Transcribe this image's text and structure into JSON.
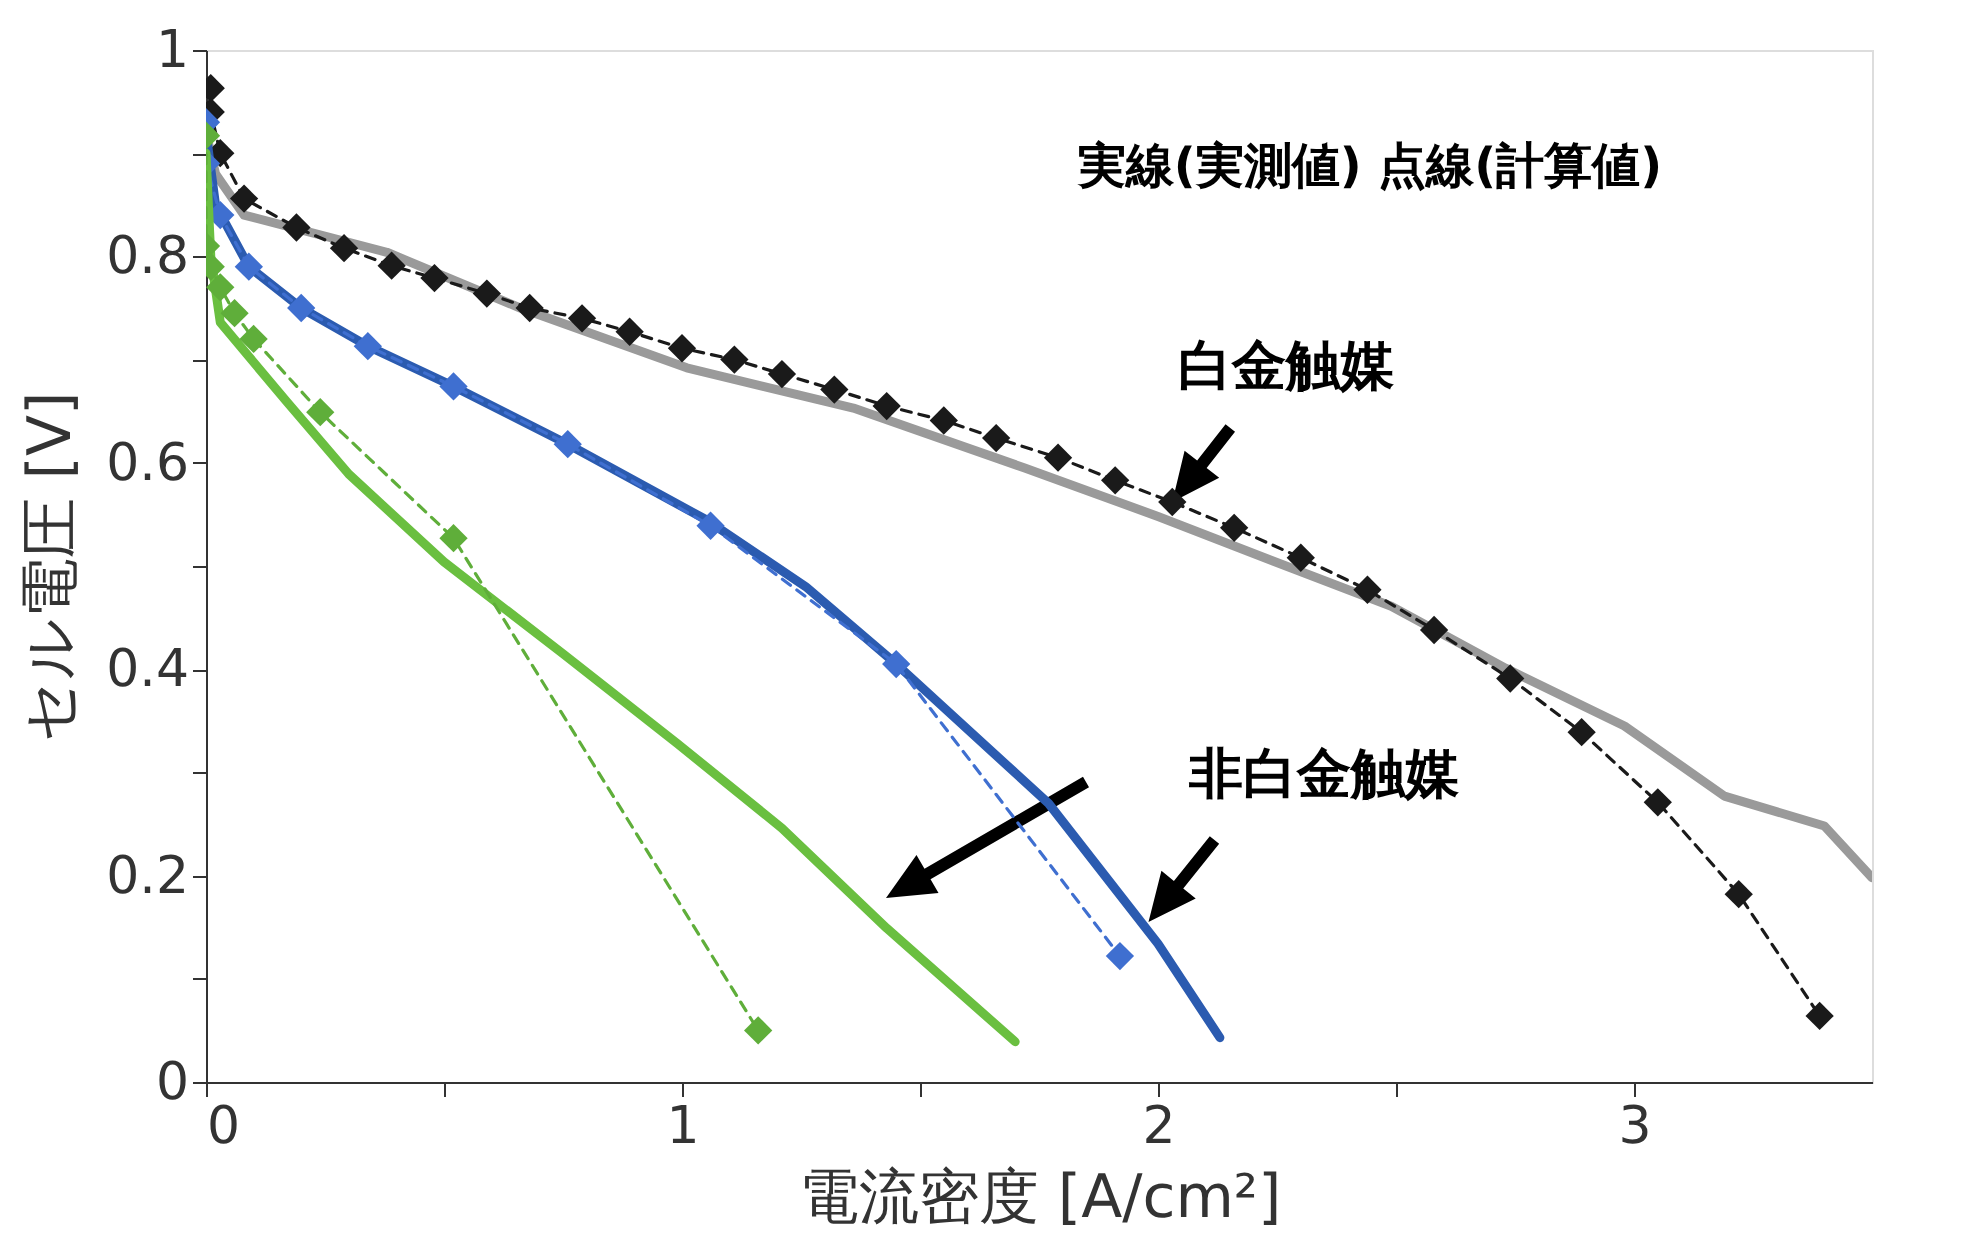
{
  "chart_data": {
    "type": "line",
    "xlabel": "電流密度 [A/cm²]",
    "ylabel": "セル電圧 [V]",
    "xlim": [
      0,
      3.5
    ],
    "ylim": [
      0,
      1
    ],
    "xticks": [
      0,
      {
        "value": 0.5,
        "label": null
      },
      1,
      {
        "value": 1.5,
        "label": null
      },
      2,
      {
        "value": 2.5,
        "label": null
      },
      3
    ],
    "yticks": [
      0,
      {
        "value": 0.1,
        "label": null
      },
      0.2,
      {
        "value": 0.3,
        "label": null
      },
      0.4,
      {
        "value": 0.5,
        "label": null
      },
      0.6,
      {
        "value": 0.7,
        "label": null
      },
      0.8,
      {
        "value": 0.9,
        "label": null
      },
      1
    ],
    "grid": false,
    "annotations": [
      "実線(実測値)  点線(計算値)",
      {
        "text": "白金触媒",
        "x": 2.03,
        "y": 0.562
      },
      {
        "text": "非白金触媒",
        "x": 1.98,
        "y": 0.155
      }
    ],
    "series": [
      {
        "color": "#9a9a9a",
        "marker": "none",
        "line_style": "solid",
        "x": [
          0,
          0.02,
          0.08,
          0.38,
          0.66,
          1.01,
          1.36,
          1.72,
          2.0,
          2.28,
          2.49,
          2.73,
          2.98,
          3.19,
          3.4,
          3.5
        ],
        "values": [
          0.92,
          0.88,
          0.84,
          0.804,
          0.75,
          0.692,
          0.653,
          0.595,
          0.548,
          0.498,
          0.461,
          0.401,
          0.345,
          0.277,
          0.248,
          0.198
        ]
      },
      {
        "color": "#1a1a1a",
        "marker": "diamond",
        "line_style": "dashed",
        "x": [
          0.01,
          0.01,
          0.03,
          0.08,
          0.19,
          0.29,
          0.39,
          0.48,
          0.59,
          0.68,
          0.79,
          0.89,
          1.0,
          1.11,
          1.21,
          1.32,
          1.43,
          1.55,
          1.66,
          1.79,
          1.91,
          2.03,
          2.16,
          2.3,
          2.44,
          2.58,
          2.74,
          2.89,
          3.05,
          3.22,
          3.39
        ],
        "values": [
          0.963,
          0.94,
          0.9,
          0.856,
          0.828,
          0.808,
          0.791,
          0.779,
          0.764,
          0.75,
          0.74,
          0.727,
          0.711,
          0.7,
          0.686,
          0.671,
          0.655,
          0.641,
          0.624,
          0.605,
          0.583,
          0.562,
          0.537,
          0.508,
          0.477,
          0.438,
          0.391,
          0.339,
          0.271,
          0.182,
          0.064
        ]
      },
      {
        "color": "#2b5bb0",
        "marker": "none",
        "line_style": "solid",
        "x": [
          0,
          0.02,
          0.09,
          0.2,
          0.34,
          0.52,
          0.76,
          1.05,
          1.26,
          1.45,
          1.77,
          2.0,
          2.13
        ],
        "values": [
          0.92,
          0.85,
          0.79,
          0.75,
          0.713,
          0.674,
          0.618,
          0.545,
          0.48,
          0.405,
          0.27,
          0.134,
          0.043
        ]
      },
      {
        "color": "#3f6fd0",
        "marker": "diamond",
        "line_style": "dashed",
        "x": [
          0,
          0,
          0.03,
          0.09,
          0.2,
          0.34,
          0.52,
          0.76,
          1.06,
          1.45,
          1.92
        ],
        "values": [
          0.93,
          0.89,
          0.84,
          0.79,
          0.75,
          0.713,
          0.674,
          0.618,
          0.539,
          0.405,
          0.122
        ]
      },
      {
        "color": "#6abf40",
        "marker": "none",
        "line_style": "solid",
        "x": [
          0,
          0.01,
          0.03,
          0.17,
          0.3,
          0.5,
          0.75,
          0.99,
          1.21,
          1.43,
          1.7
        ],
        "values": [
          0.9,
          0.8,
          0.736,
          0.659,
          0.589,
          0.504,
          0.415,
          0.328,
          0.246,
          0.149,
          0.039
        ]
      },
      {
        "color": "#5fae3a",
        "marker": "diamond",
        "line_style": "dashed",
        "x": [
          0,
          0,
          0.01,
          0.03,
          0.06,
          0.1,
          0.24,
          0.52,
          1.16
        ],
        "values": [
          0.917,
          0.81,
          0.79,
          0.77,
          0.745,
          0.72,
          0.649,
          0.527,
          0.05
        ]
      }
    ]
  }
}
